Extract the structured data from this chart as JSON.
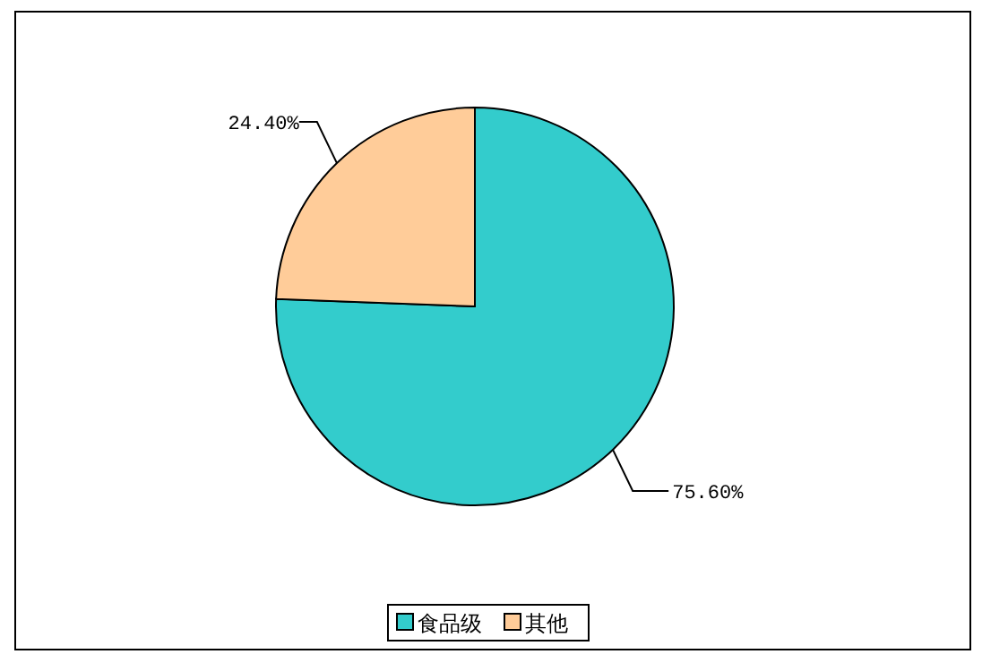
{
  "chart_data": {
    "type": "pie",
    "categories": [
      "食品级",
      "其他"
    ],
    "values": [
      75.6,
      24.4
    ],
    "colors": [
      "#33cccc",
      "#ffcc99"
    ],
    "value_labels": [
      "75.60%",
      "24.40%"
    ],
    "legend": "bottom"
  }
}
